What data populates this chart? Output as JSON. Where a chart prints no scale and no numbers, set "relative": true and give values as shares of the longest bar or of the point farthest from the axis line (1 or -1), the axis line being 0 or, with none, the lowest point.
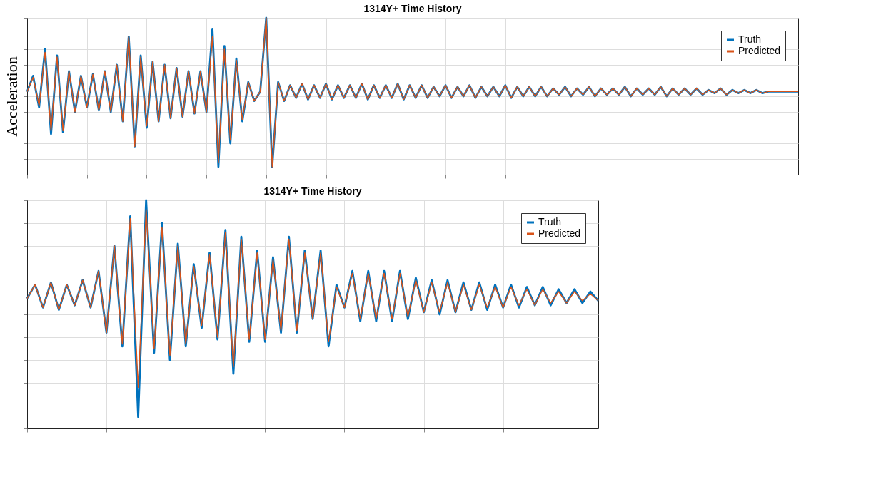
{
  "chart_data": [
    {
      "type": "line",
      "title": "1314Y+ Time History",
      "ylabel": "Acceleration",
      "relative": true,
      "grid": true,
      "legend": "top right",
      "line_style": "solid",
      "marker": "none",
      "categories": [
        null,
        null,
        null,
        null,
        null,
        null,
        null,
        null,
        null,
        null,
        null,
        null,
        null,
        null,
        null,
        null,
        null,
        null,
        null,
        null,
        null,
        null,
        null,
        null,
        null,
        null,
        null,
        null,
        null,
        null,
        null,
        null,
        null,
        null,
        null,
        null,
        null,
        null,
        null,
        null,
        null,
        null,
        null,
        null,
        null,
        null,
        null,
        null,
        null,
        null,
        null,
        null,
        null,
        null,
        null,
        null,
        null,
        null,
        null,
        null,
        null,
        null,
        null,
        null,
        null,
        null,
        null,
        null,
        null,
        null,
        null,
        null,
        null,
        null,
        null,
        null,
        null,
        null,
        null,
        null,
        null,
        null,
        null,
        null,
        null,
        null,
        null,
        null,
        null,
        null,
        null,
        null,
        null,
        null,
        null,
        null,
        null,
        null,
        null,
        null,
        null,
        null,
        null,
        null,
        null,
        null,
        null,
        null,
        null,
        null,
        null,
        null,
        null,
        null,
        null,
        null,
        null,
        null,
        null,
        null,
        null,
        null,
        null,
        null,
        null,
        null,
        null,
        null,
        null,
        null
      ],
      "series": [
        {
          "name": "Truth",
          "color": "#0072bd",
          "values": [
            0.53,
            0.63,
            0.43,
            0.8,
            0.26,
            0.76,
            0.27,
            0.66,
            0.4,
            0.63,
            0.43,
            0.64,
            0.41,
            0.66,
            0.4,
            0.7,
            0.34,
            0.88,
            0.18,
            0.76,
            0.3,
            0.72,
            0.34,
            0.7,
            0.36,
            0.68,
            0.37,
            0.66,
            0.39,
            0.66,
            0.4,
            0.93,
            0.05,
            0.82,
            0.2,
            0.74,
            0.34,
            0.59,
            0.47,
            0.53,
            1.0,
            0.05,
            0.59,
            0.47,
            0.57,
            0.49,
            0.58,
            0.48,
            0.57,
            0.49,
            0.58,
            0.48,
            0.57,
            0.49,
            0.57,
            0.49,
            0.58,
            0.48,
            0.57,
            0.49,
            0.57,
            0.49,
            0.58,
            0.48,
            0.57,
            0.49,
            0.57,
            0.49,
            0.56,
            0.5,
            0.57,
            0.49,
            0.56,
            0.5,
            0.57,
            0.49,
            0.56,
            0.5,
            0.56,
            0.5,
            0.57,
            0.49,
            0.56,
            0.5,
            0.56,
            0.5,
            0.56,
            0.5,
            0.55,
            0.51,
            0.56,
            0.5,
            0.55,
            0.51,
            0.56,
            0.5,
            0.55,
            0.51,
            0.55,
            0.51,
            0.56,
            0.5,
            0.55,
            0.51,
            0.55,
            0.51,
            0.56,
            0.5,
            0.55,
            0.51,
            0.55,
            0.51,
            0.55,
            0.51,
            0.54,
            0.52,
            0.55,
            0.51,
            0.54,
            0.52,
            0.54,
            0.52,
            0.54,
            0.52,
            0.53,
            0.53,
            0.53,
            0.53,
            0.53,
            0.53
          ]
        },
        {
          "name": "Predicted",
          "color": "#d95319",
          "values": [
            0.53,
            0.62,
            0.44,
            0.78,
            0.28,
            0.75,
            0.28,
            0.66,
            0.4,
            0.63,
            0.43,
            0.64,
            0.41,
            0.66,
            0.4,
            0.7,
            0.34,
            0.88,
            0.18,
            0.75,
            0.31,
            0.72,
            0.34,
            0.7,
            0.36,
            0.68,
            0.37,
            0.66,
            0.39,
            0.66,
            0.4,
            0.88,
            0.08,
            0.8,
            0.22,
            0.73,
            0.35,
            0.59,
            0.47,
            0.53,
            1.0,
            0.05,
            0.59,
            0.47,
            0.57,
            0.49,
            0.58,
            0.48,
            0.57,
            0.49,
            0.58,
            0.48,
            0.57,
            0.49,
            0.57,
            0.49,
            0.58,
            0.48,
            0.57,
            0.49,
            0.57,
            0.49,
            0.58,
            0.48,
            0.57,
            0.49,
            0.57,
            0.49,
            0.56,
            0.5,
            0.57,
            0.49,
            0.56,
            0.5,
            0.57,
            0.49,
            0.56,
            0.5,
            0.56,
            0.5,
            0.57,
            0.49,
            0.56,
            0.5,
            0.56,
            0.5,
            0.56,
            0.5,
            0.55,
            0.51,
            0.56,
            0.5,
            0.55,
            0.51,
            0.56,
            0.5,
            0.55,
            0.51,
            0.55,
            0.51,
            0.56,
            0.5,
            0.55,
            0.51,
            0.55,
            0.51,
            0.56,
            0.5,
            0.55,
            0.51,
            0.55,
            0.51,
            0.55,
            0.51,
            0.54,
            0.52,
            0.55,
            0.51,
            0.54,
            0.52,
            0.54,
            0.52,
            0.54,
            0.52,
            0.53,
            0.53,
            0.53,
            0.53,
            0.53,
            0.53
          ]
        }
      ]
    },
    {
      "type": "line",
      "title": "1314Y+ Time History",
      "relative": true,
      "grid": true,
      "legend": "top right",
      "line_style": "solid",
      "marker": "none",
      "categories": [
        null,
        null,
        null,
        null,
        null,
        null,
        null,
        null,
        null,
        null,
        null,
        null,
        null,
        null,
        null,
        null,
        null,
        null,
        null,
        null,
        null,
        null,
        null,
        null,
        null,
        null,
        null,
        null,
        null,
        null,
        null,
        null,
        null,
        null,
        null,
        null,
        null,
        null,
        null,
        null,
        null,
        null,
        null,
        null,
        null,
        null,
        null,
        null,
        null,
        null,
        null,
        null,
        null,
        null,
        null,
        null,
        null,
        null,
        null,
        null,
        null,
        null,
        null,
        null,
        null,
        null,
        null,
        null,
        null,
        null,
        null,
        null,
        null
      ],
      "series": [
        {
          "name": "Truth",
          "color": "#0072bd",
          "values": [
            0.57,
            0.63,
            0.53,
            0.64,
            0.52,
            0.63,
            0.54,
            0.65,
            0.53,
            0.69,
            0.42,
            0.8,
            0.36,
            0.93,
            0.05,
            1.0,
            0.33,
            0.9,
            0.3,
            0.81,
            0.36,
            0.72,
            0.44,
            0.77,
            0.39,
            0.87,
            0.24,
            0.84,
            0.38,
            0.78,
            0.38,
            0.75,
            0.42,
            0.84,
            0.42,
            0.78,
            0.48,
            0.78,
            0.36,
            0.63,
            0.53,
            0.69,
            0.47,
            0.69,
            0.47,
            0.69,
            0.47,
            0.69,
            0.48,
            0.66,
            0.51,
            0.65,
            0.5,
            0.65,
            0.51,
            0.64,
            0.52,
            0.64,
            0.52,
            0.63,
            0.53,
            0.63,
            0.53,
            0.62,
            0.54,
            0.62,
            0.54,
            0.61,
            0.55,
            0.61,
            0.55,
            0.6,
            0.56
          ]
        },
        {
          "name": "Predicted",
          "color": "#d95319",
          "values": [
            0.57,
            0.63,
            0.53,
            0.64,
            0.52,
            0.63,
            0.54,
            0.65,
            0.53,
            0.69,
            0.42,
            0.8,
            0.37,
            0.92,
            0.18,
            0.96,
            0.35,
            0.88,
            0.32,
            0.8,
            0.37,
            0.71,
            0.45,
            0.76,
            0.4,
            0.86,
            0.27,
            0.83,
            0.39,
            0.77,
            0.39,
            0.74,
            0.43,
            0.83,
            0.43,
            0.77,
            0.48,
            0.77,
            0.38,
            0.62,
            0.53,
            0.68,
            0.48,
            0.68,
            0.48,
            0.68,
            0.48,
            0.68,
            0.49,
            0.65,
            0.51,
            0.64,
            0.51,
            0.64,
            0.51,
            0.63,
            0.52,
            0.63,
            0.53,
            0.62,
            0.53,
            0.62,
            0.54,
            0.61,
            0.54,
            0.61,
            0.55,
            0.6,
            0.55,
            0.6,
            0.56,
            0.59,
            0.56
          ]
        }
      ]
    }
  ]
}
